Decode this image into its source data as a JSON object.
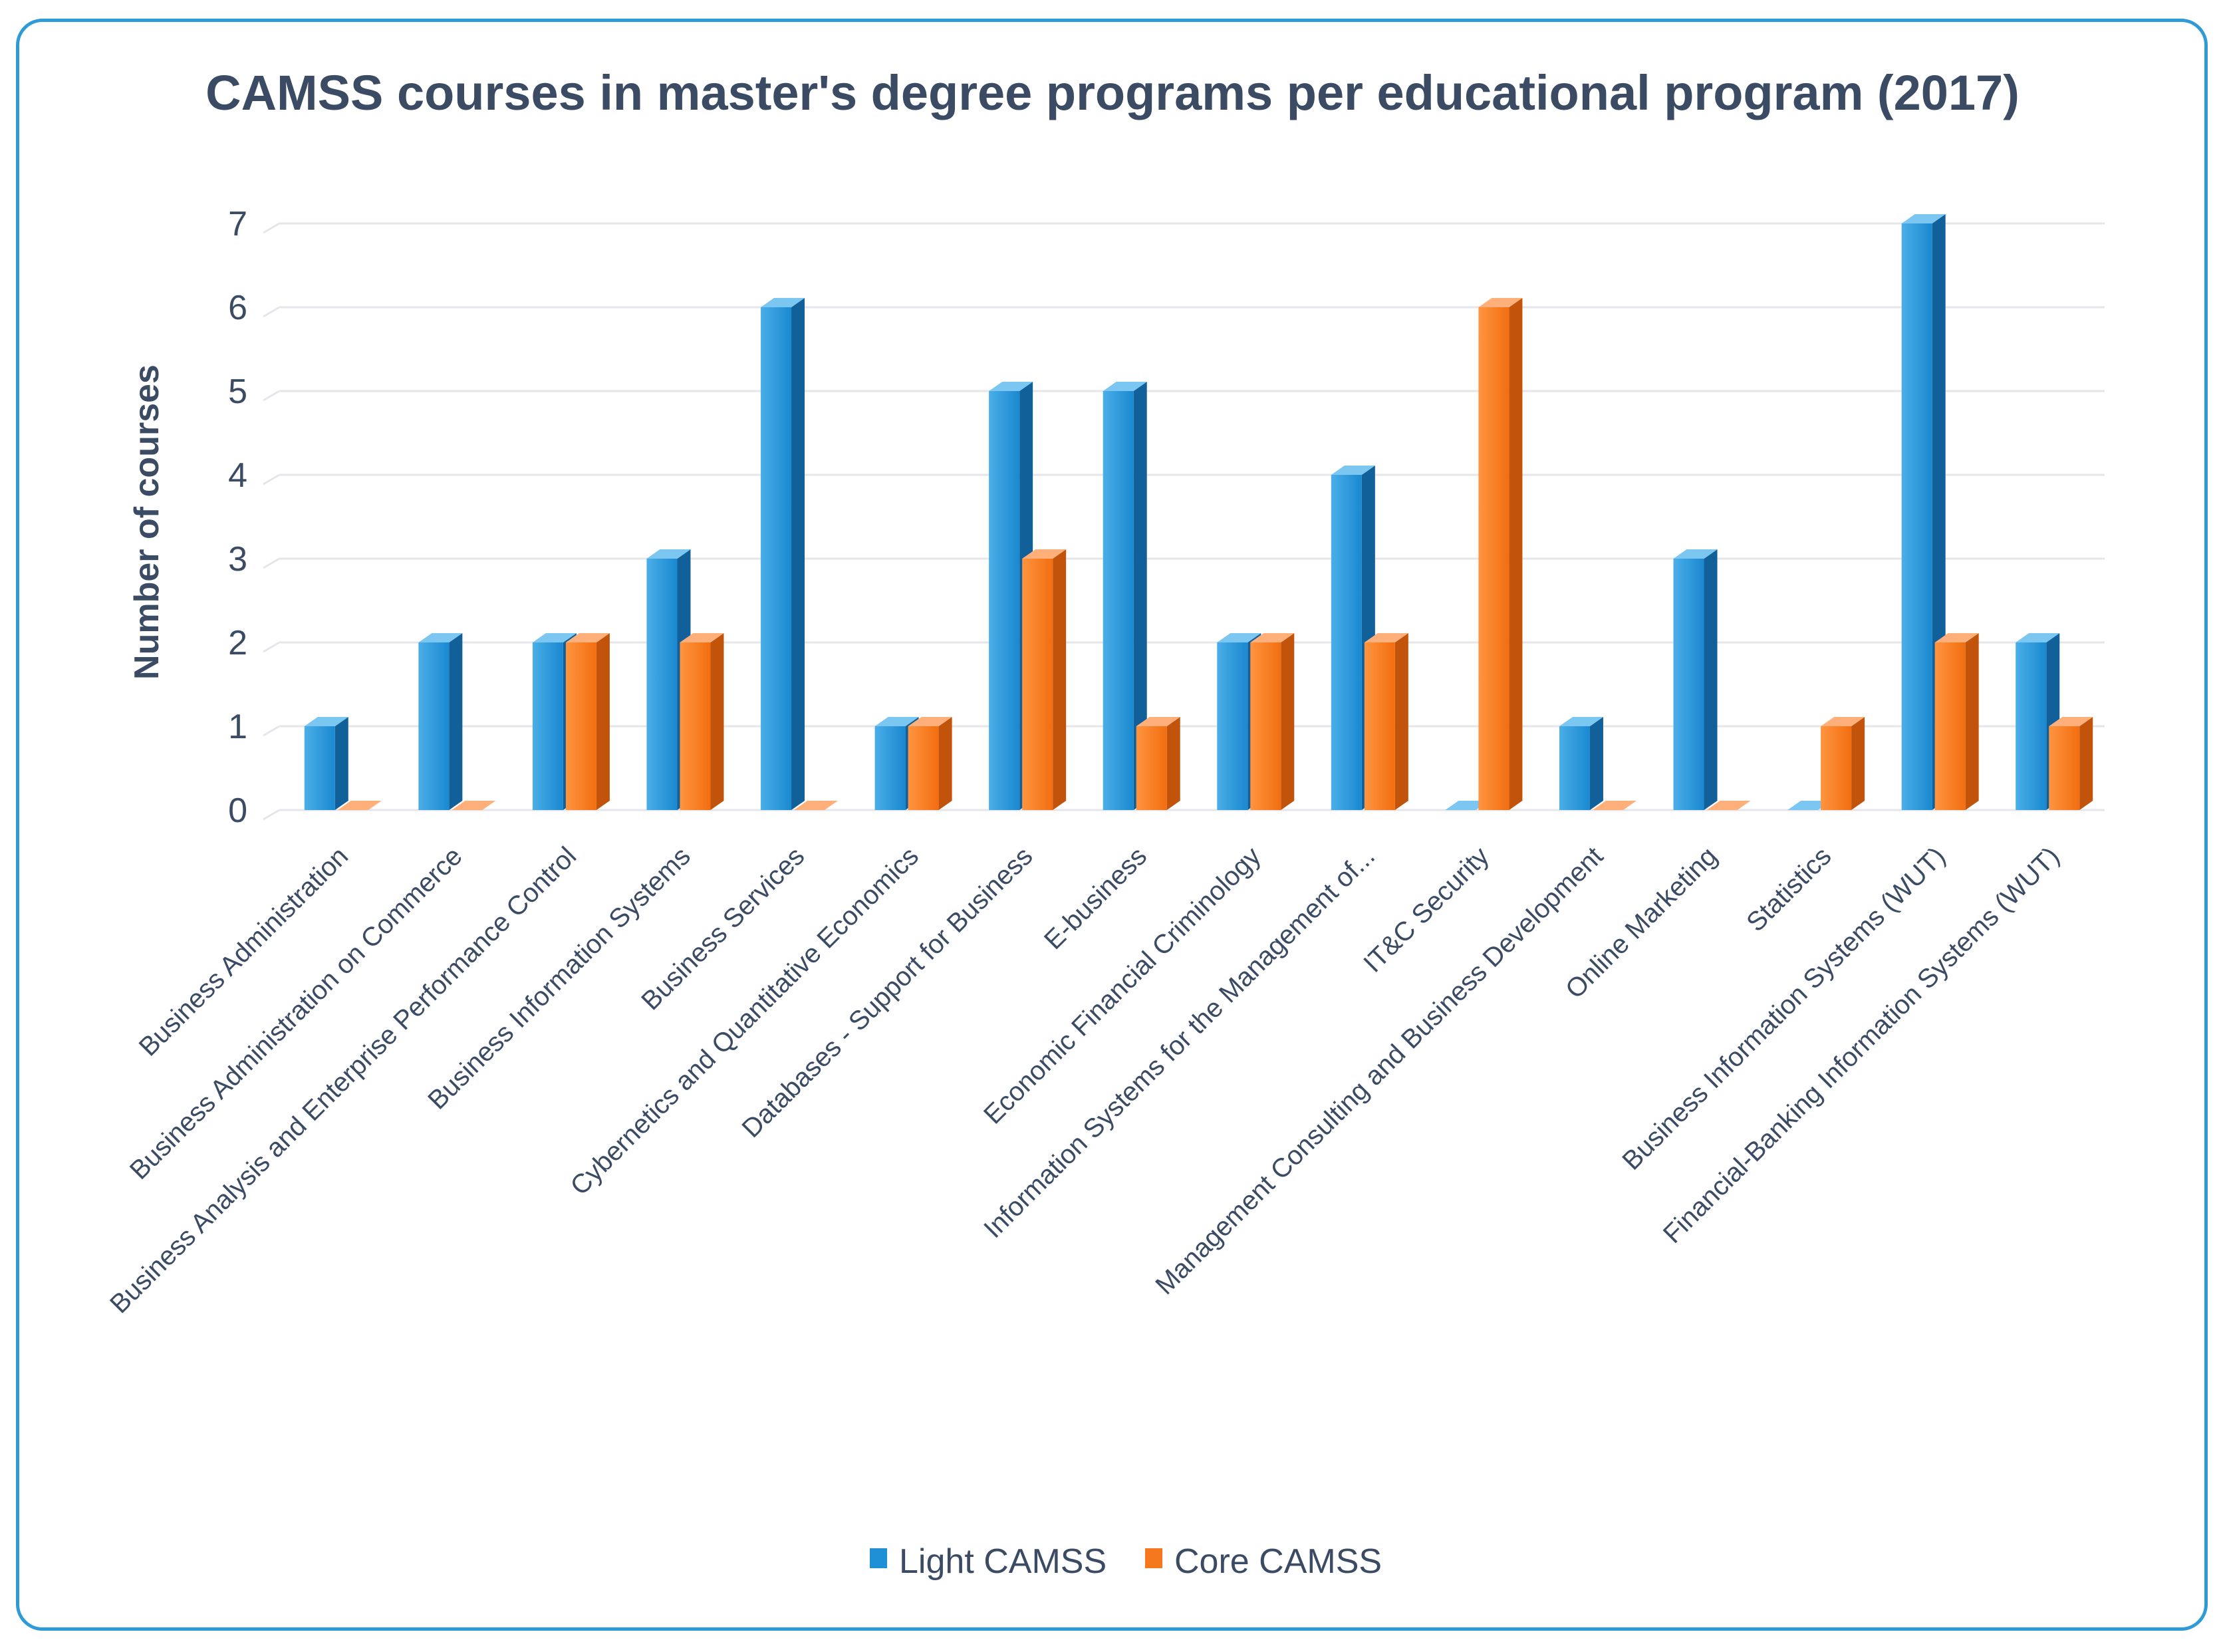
{
  "chart_data": {
    "type": "bar",
    "title": "CAMSS courses in master's degree programs per educational program (2017)",
    "xlabel": "",
    "ylabel": "Number of courses",
    "ylim": [
      0,
      7
    ],
    "yticks": [
      0,
      1,
      2,
      3,
      4,
      5,
      6,
      7
    ],
    "grid": true,
    "legend_position": "bottom",
    "categories": [
      "Business Administration",
      "Business Administration on Commerce",
      "Business Analysis and Enterprise Performance Control",
      "Business Information Systems",
      "Business Services",
      "Cybernetics and Quantitative Economics",
      "Databases - Support for Business",
      "E-business",
      "Economic Financial Criminology",
      "Information Systems for the Management of...",
      "IT&C Security",
      "Management Consulting and Business Development",
      "Online Marketing",
      "Statistics",
      "Business Information Systems (WUT)",
      "Financial-Banking Information Systems (WUT)"
    ],
    "series": [
      {
        "name": "Light CAMSS",
        "color": "#1f8fd6",
        "values": [
          1,
          2,
          2,
          3,
          6,
          1,
          5,
          5,
          2,
          4,
          0,
          1,
          3,
          0,
          7,
          2
        ]
      },
      {
        "name": "Core CAMSS",
        "color": "#f5781e",
        "values": [
          0,
          0,
          2,
          2,
          0,
          1,
          3,
          1,
          2,
          2,
          6,
          0,
          0,
          1,
          2,
          1
        ]
      }
    ]
  },
  "colors": {
    "frame": "#2e9bd6",
    "text": "#3a4b63",
    "grid": "#e4e6ea"
  }
}
